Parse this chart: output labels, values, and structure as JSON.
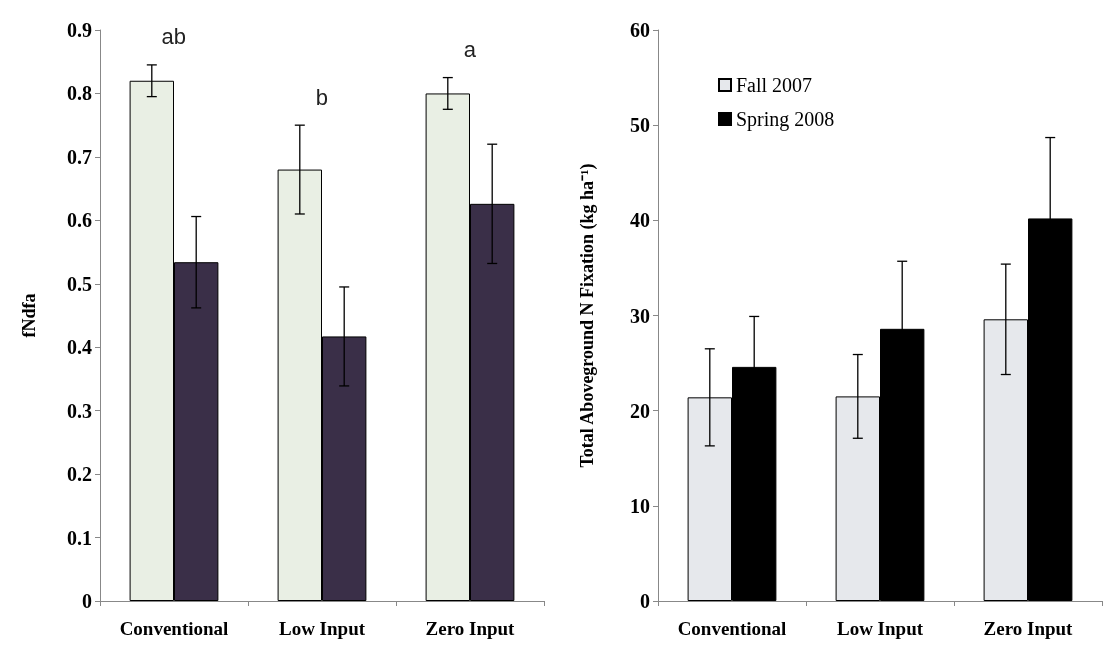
{
  "chart_data": [
    {
      "type": "bar",
      "ylabel": "fNdfa",
      "categories": [
        "Conventional",
        "Low Input",
        "Zero Input"
      ],
      "series": [
        {
          "color": "#e9efe4",
          "values": [
            0.82,
            0.68,
            0.8
          ],
          "errors": [
            0.025,
            0.07,
            0.025
          ]
        },
        {
          "color": "#3a2f48",
          "values": [
            0.534,
            0.417,
            0.626
          ],
          "errors": [
            0.072,
            0.078,
            0.094
          ]
        }
      ],
      "ylim": [
        0,
        0.9
      ],
      "yticks": [
        0,
        0.1,
        0.2,
        0.3,
        0.4,
        0.5,
        0.6,
        0.7,
        0.8,
        0.9
      ],
      "grid": false,
      "legend": false,
      "annotations": [
        "ab",
        "b",
        "a"
      ]
    },
    {
      "type": "bar",
      "ylabel": "Total Aboveground N Fixation (kg ha⁻¹)",
      "categories": [
        "Conventional",
        "Low Input",
        "Zero Input"
      ],
      "series": [
        {
          "name": "Fall 2007",
          "color": "#e6e8ec",
          "values": [
            21.4,
            21.5,
            29.6
          ],
          "errors": [
            5.1,
            4.4,
            5.8
          ]
        },
        {
          "name": "Spring 2008",
          "color": "#000000",
          "values": [
            24.6,
            28.6,
            40.2
          ],
          "errors": [
            5.3,
            7.1,
            8.5
          ]
        }
      ],
      "ylim": [
        0,
        60
      ],
      "yticks": [
        0,
        10,
        20,
        30,
        40,
        50,
        60
      ],
      "grid": false,
      "legend": "top left"
    }
  ]
}
